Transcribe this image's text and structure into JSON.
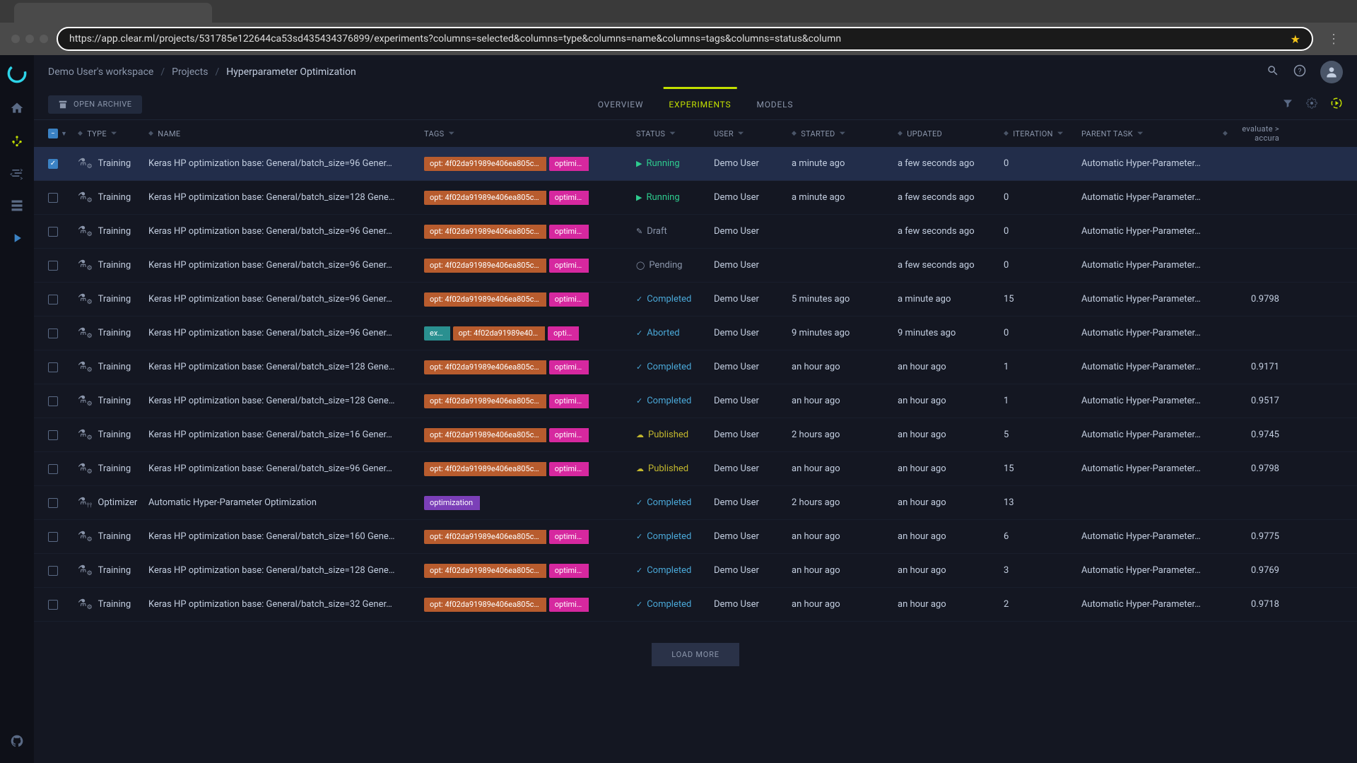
{
  "url": "https://app.clear.ml/projects/531785e122644ca53sd435434376899/experiments?columns=selected&columns=type&columns=name&columns=tags&columns=status&column",
  "breadcrumbs": [
    "Demo User's workspace",
    "Projects",
    "Hyperparameter Optimization"
  ],
  "archive_button": "OPEN ARCHIVE",
  "tabs": [
    {
      "label": "OVERVIEW",
      "active": false
    },
    {
      "label": "EXPERIMENTS",
      "active": true
    },
    {
      "label": "MODELS",
      "active": false
    }
  ],
  "columns": {
    "type": "TYPE",
    "name": "NAME",
    "tags": "TAGS",
    "status": "STATUS",
    "user": "USER",
    "started": "STARTED",
    "updated": "UPDATED",
    "iteration": "ITERATION",
    "parent": "PARENT TASK",
    "eval": "evaluate > accura"
  },
  "load_more": "LOAD MORE",
  "status_colors": {
    "Running": "#2ecc8f",
    "Draft": "#8b96ab",
    "Pending": "#8b96ab",
    "Completed": "#4aa8d8",
    "Aborted": "#4aa8d8",
    "Published": "#c3b82e"
  },
  "rows": [
    {
      "checked": true,
      "type": "Training",
      "name": "Keras HP optimization base: General/batch_size=96 Gener…",
      "tags": [
        {
          "c": "orange",
          "t": "opt: 4f02da91989e406ea805c…"
        },
        {
          "c": "pink",
          "t": "optimi…"
        }
      ],
      "status": "Running",
      "user": "Demo User",
      "started": "a minute ago",
      "updated": "a few seconds ago",
      "iter": "0",
      "parent": "Automatic Hyper-Parameter…",
      "eval": ""
    },
    {
      "checked": false,
      "type": "Training",
      "name": "Keras HP optimization base: General/batch_size=128 Gene…",
      "tags": [
        {
          "c": "orange",
          "t": "opt: 4f02da91989e406ea805c…"
        },
        {
          "c": "pink",
          "t": "optimi…"
        }
      ],
      "status": "Running",
      "user": "Demo User",
      "started": "a minute ago",
      "updated": "a few seconds ago",
      "iter": "0",
      "parent": "Automatic Hyper-Parameter…",
      "eval": ""
    },
    {
      "checked": false,
      "type": "Training",
      "name": "Keras HP optimization base: General/batch_size=96 Gener…",
      "tags": [
        {
          "c": "orange",
          "t": "opt: 4f02da91989e406ea805c…"
        },
        {
          "c": "pink",
          "t": "optimi…"
        }
      ],
      "status": "Draft",
      "user": "Demo User",
      "started": "",
      "updated": "a few seconds ago",
      "iter": "0",
      "parent": "Automatic Hyper-Parameter…",
      "eval": ""
    },
    {
      "checked": false,
      "type": "Training",
      "name": "Keras HP optimization base: General/batch_size=96 Gener…",
      "tags": [
        {
          "c": "orange",
          "t": "opt: 4f02da91989e406ea805c…"
        },
        {
          "c": "pink",
          "t": "optimi…"
        }
      ],
      "status": "Pending",
      "user": "Demo User",
      "started": "",
      "updated": "a few seconds ago",
      "iter": "0",
      "parent": "Automatic Hyper-Parameter…",
      "eval": ""
    },
    {
      "checked": false,
      "type": "Training",
      "name": "Keras HP optimization base: General/batch_size=96 Gener…",
      "tags": [
        {
          "c": "orange",
          "t": "opt: 4f02da91989e406ea805c…"
        },
        {
          "c": "pink",
          "t": "optimi…"
        }
      ],
      "status": "Completed",
      "user": "Demo User",
      "started": "5 minutes ago",
      "updated": "a minute ago",
      "iter": "15",
      "parent": "Automatic Hyper-Parameter…",
      "eval": "0.9798"
    },
    {
      "checked": false,
      "type": "Training",
      "name": "Keras HP optimization base: General/batch_size=96 Gener…",
      "tags": [
        {
          "c": "teal",
          "t": "ex…"
        },
        {
          "c": "orange",
          "t": "opt: 4f02da91989e40…"
        },
        {
          "c": "pink",
          "t": "opti…"
        }
      ],
      "status": "Aborted",
      "user": "Demo User",
      "started": "9 minutes ago",
      "updated": "9 minutes ago",
      "iter": "0",
      "parent": "Automatic Hyper-Parameter…",
      "eval": ""
    },
    {
      "checked": false,
      "type": "Training",
      "name": "Keras HP optimization base: General/batch_size=128 Gene…",
      "tags": [
        {
          "c": "orange",
          "t": "opt: 4f02da91989e406ea805c…"
        },
        {
          "c": "pink",
          "t": "optimi…"
        }
      ],
      "status": "Completed",
      "user": "Demo User",
      "started": "an hour ago",
      "updated": "an hour ago",
      "iter": "1",
      "parent": "Automatic Hyper-Parameter…",
      "eval": "0.9171"
    },
    {
      "checked": false,
      "type": "Training",
      "name": "Keras HP optimization base: General/batch_size=128 Gene…",
      "tags": [
        {
          "c": "orange",
          "t": "opt: 4f02da91989e406ea805c…"
        },
        {
          "c": "pink",
          "t": "optimi…"
        }
      ],
      "status": "Completed",
      "user": "Demo User",
      "started": "an hour ago",
      "updated": "an hour ago",
      "iter": "1",
      "parent": "Automatic Hyper-Parameter…",
      "eval": "0.9517"
    },
    {
      "checked": false,
      "type": "Training",
      "name": "Keras HP optimization base: General/batch_size=16 Gener…",
      "tags": [
        {
          "c": "orange",
          "t": "opt: 4f02da91989e406ea805c…"
        },
        {
          "c": "pink",
          "t": "optimi…"
        }
      ],
      "status": "Published",
      "user": "Demo User",
      "started": "2 hours ago",
      "updated": "an hour ago",
      "iter": "5",
      "parent": "Automatic Hyper-Parameter…",
      "eval": "0.9745"
    },
    {
      "checked": false,
      "type": "Training",
      "name": "Keras HP optimization base: General/batch_size=96 Gener…",
      "tags": [
        {
          "c": "orange",
          "t": "opt: 4f02da91989e406ea805c…"
        },
        {
          "c": "pink",
          "t": "optimi…"
        }
      ],
      "status": "Published",
      "user": "Demo User",
      "started": "an hour ago",
      "updated": "an hour ago",
      "iter": "15",
      "parent": "Automatic Hyper-Parameter…",
      "eval": "0.9798"
    },
    {
      "checked": false,
      "type": "Optimizer",
      "name": "Automatic Hyper-Parameter Optimization",
      "tags": [
        {
          "c": "purple",
          "t": "optimization"
        }
      ],
      "status": "Completed",
      "user": "Demo User",
      "started": "2 hours ago",
      "updated": "an hour ago",
      "iter": "13",
      "parent": "",
      "eval": ""
    },
    {
      "checked": false,
      "type": "Training",
      "name": "Keras HP optimization base: General/batch_size=160 Gene…",
      "tags": [
        {
          "c": "orange",
          "t": "opt: 4f02da91989e406ea805c…"
        },
        {
          "c": "pink",
          "t": "optimi…"
        }
      ],
      "status": "Completed",
      "user": "Demo User",
      "started": "an hour ago",
      "updated": "an hour ago",
      "iter": "6",
      "parent": "Automatic Hyper-Parameter…",
      "eval": "0.9775"
    },
    {
      "checked": false,
      "type": "Training",
      "name": "Keras HP optimization base: General/batch_size=128 Gene…",
      "tags": [
        {
          "c": "orange",
          "t": "opt: 4f02da91989e406ea805c…"
        },
        {
          "c": "pink",
          "t": "optimi…"
        }
      ],
      "status": "Completed",
      "user": "Demo User",
      "started": "an hour ago",
      "updated": "an hour ago",
      "iter": "3",
      "parent": "Automatic Hyper-Parameter…",
      "eval": "0.9769"
    },
    {
      "checked": false,
      "type": "Training",
      "name": "Keras HP optimization base: General/batch_size=32 Gener…",
      "tags": [
        {
          "c": "orange",
          "t": "opt: 4f02da91989e406ea805c…"
        },
        {
          "c": "pink",
          "t": "optimi…"
        }
      ],
      "status": "Completed",
      "user": "Demo User",
      "started": "an hour ago",
      "updated": "an hour ago",
      "iter": "2",
      "parent": "Automatic Hyper-Parameter…",
      "eval": "0.9718"
    }
  ]
}
